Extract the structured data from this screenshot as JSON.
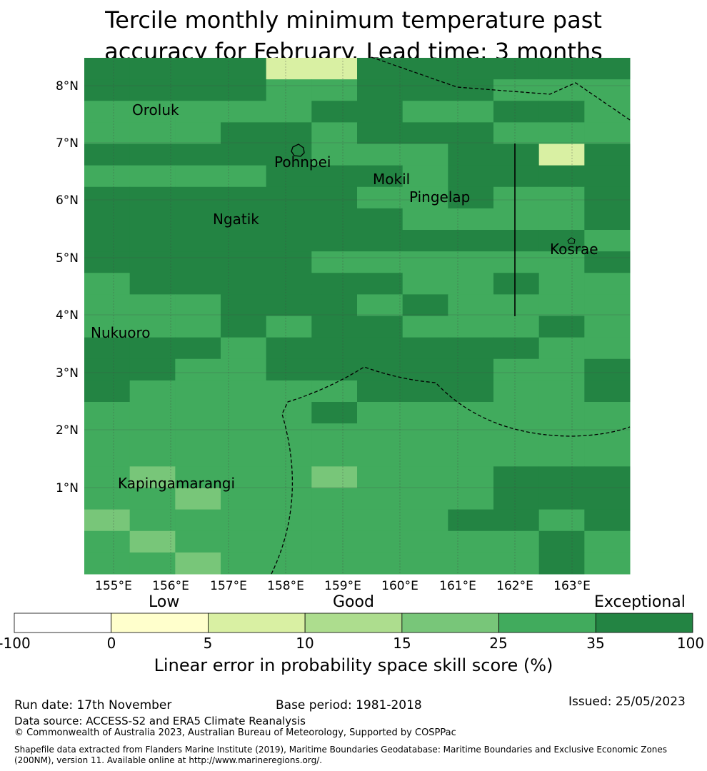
{
  "title_line1": "Tercile monthly minimum temperature past",
  "title_line2": "accuracy for February. Lead time: 3 months",
  "map": {
    "lat_labels": [
      "8°N",
      "7°N",
      "6°N",
      "5°N",
      "4°N",
      "3°N",
      "2°N",
      "1°N"
    ],
    "lon_labels": [
      "155°E",
      "156°E",
      "157°E",
      "158°E",
      "159°E",
      "160°E",
      "161°E",
      "162°E",
      "163°E"
    ],
    "places": [
      {
        "id": "oroluk",
        "name": "Oroluk"
      },
      {
        "id": "pohnpei",
        "name": "Pohnpei"
      },
      {
        "id": "mokil",
        "name": "Mokil"
      },
      {
        "id": "pingelap",
        "name": "Pingelap"
      },
      {
        "id": "ngatik",
        "name": "Ngatik"
      },
      {
        "id": "kosrae",
        "name": "Kosrae"
      },
      {
        "id": "nukuoro",
        "name": "Nukuoro"
      },
      {
        "id": "kapingamarangi",
        "name": "Kapingamarangi"
      }
    ],
    "grid_classes": [
      "666622666666",
      "666655666555",
      "555556655665",
      "555665666555",
      "666665556626",
      "555566656666",
      "666666556556",
      "666666655556",
      "666666666665",
      "666665555556",
      "566666655655",
      "555666565555",
      "555656655565",
      "666566666655",
      "665566666556",
      "655555666556",
      "555556555555",
      "555555555555",
      "555555555555",
      "545554555666",
      "554555555666",
      "455555556656",
      "545555555565",
      "554555555565"
    ]
  },
  "colorbar": {
    "category_low": "Low",
    "category_good": "Good",
    "category_exceptional": "Exceptional",
    "ticks": [
      "-100",
      "0",
      "5",
      "10",
      "15",
      "25",
      "35",
      "100"
    ],
    "colors": [
      "#ffffff",
      "#ffffcc",
      "#d9f0a3",
      "#addd8e",
      "#78c679",
      "#41ab5d",
      "#238443"
    ],
    "label": "Linear error in probability space skill score (%)"
  },
  "footer": {
    "run_date": "Run date: 17th November",
    "base_period": "Base period: 1981-2018",
    "issued": "Issued: 25/05/2023",
    "data_source": "Data source: ACCESS-S2 and ERA5 Climate Reanalysis",
    "copyright": "© Commonwealth of Australia 2023, Australian Bureau of Meteorology, Supported by COSPPac",
    "shapefile_line1": "Shapefile data extracted from Flanders Marine Institute (2019), Maritime Boundaries Geodatabase: Maritime Boundaries and Exclusive Economic Zones",
    "shapefile_line2": "(200NM), version 11. Available online at http://www.marineregions.org/."
  }
}
